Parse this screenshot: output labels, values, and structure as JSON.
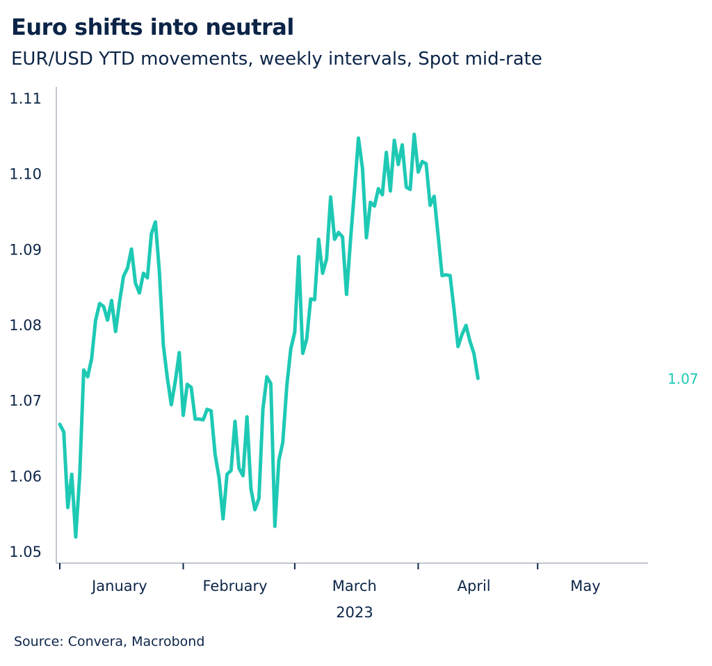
{
  "title": "Euro shifts into neutral",
  "subtitle": "EUR/USD YTD movements, weekly intervals, Spot mid-rate",
  "source": "Source: Convera, Macrobond",
  "colors": {
    "line": "#1ec9b4",
    "text": "#0b2447",
    "axis": "#9aa4b2"
  },
  "chart_data": {
    "type": "line",
    "title": "Euro shifts into neutral",
    "subtitle": "EUR/USD YTD movements, weekly intervals, Spot mid-rate",
    "xlabel": "2023",
    "ylabel": "",
    "ylim": [
      1.05,
      1.11
    ],
    "yticks": [
      1.05,
      1.06,
      1.07,
      1.08,
      1.09,
      1.1,
      1.11
    ],
    "ytick_labels": [
      "1.05",
      "1.06",
      "1.07",
      "1.08",
      "1.09",
      "1.10",
      "1.11"
    ],
    "xlim": [
      "2023-01-01",
      "2023-05-24"
    ],
    "xticks": [
      "2023-01-01",
      "2023-02-01",
      "2023-03-01",
      "2023-04-01",
      "2023-05-01"
    ],
    "month_labels": [
      {
        "label": "January",
        "mid": "2023-01-16"
      },
      {
        "label": "February",
        "mid": "2023-02-14"
      },
      {
        "label": "March",
        "mid": "2023-03-16"
      },
      {
        "label": "April",
        "mid": "2023-04-15"
      },
      {
        "label": "May",
        "mid": "2023-05-13"
      }
    ],
    "grid": false,
    "legend": "none",
    "end_label": "1.07",
    "series": [
      {
        "points": [
          [
            "2023-01-01",
            1.0668
          ],
          [
            "2023-01-02",
            1.0658
          ],
          [
            "2023-01-03",
            1.0558
          ],
          [
            "2023-01-04",
            1.0602
          ],
          [
            "2023-01-05",
            1.0519
          ],
          [
            "2023-01-06",
            1.06
          ],
          [
            "2023-01-07",
            1.074
          ],
          [
            "2023-01-08",
            1.0731
          ],
          [
            "2023-01-09",
            1.0755
          ],
          [
            "2023-01-10",
            1.0806
          ],
          [
            "2023-01-11",
            1.0828
          ],
          [
            "2023-01-12",
            1.0824
          ],
          [
            "2023-01-13",
            1.0806
          ],
          [
            "2023-01-14",
            1.0832
          ],
          [
            "2023-01-15",
            1.0791
          ],
          [
            "2023-01-16",
            1.083
          ],
          [
            "2023-01-17",
            1.0864
          ],
          [
            "2023-01-18",
            1.0875
          ],
          [
            "2023-01-19",
            1.09
          ],
          [
            "2023-01-20",
            1.0855
          ],
          [
            "2023-01-21",
            1.0842
          ],
          [
            "2023-01-22",
            1.0868
          ],
          [
            "2023-01-23",
            1.0862
          ],
          [
            "2023-01-24",
            1.092
          ],
          [
            "2023-01-25",
            1.0936
          ],
          [
            "2023-01-26",
            1.087
          ],
          [
            "2023-01-27",
            1.0773
          ],
          [
            "2023-01-28",
            1.073
          ],
          [
            "2023-01-29",
            1.0694
          ],
          [
            "2023-01-30",
            1.0725
          ],
          [
            "2023-01-31",
            1.0763
          ],
          [
            "2023-02-01",
            1.068
          ],
          [
            "2023-02-02",
            1.0721
          ],
          [
            "2023-02-03",
            1.0717
          ],
          [
            "2023-02-04",
            1.0675
          ],
          [
            "2023-02-05",
            1.0675
          ],
          [
            "2023-02-06",
            1.0674
          ],
          [
            "2023-02-07",
            1.0688
          ],
          [
            "2023-02-08",
            1.0686
          ],
          [
            "2023-02-09",
            1.0628
          ],
          [
            "2023-02-10",
            1.0597
          ],
          [
            "2023-02-11",
            1.0543
          ],
          [
            "2023-02-12",
            1.0602
          ],
          [
            "2023-02-13",
            1.0607
          ],
          [
            "2023-02-14",
            1.0672
          ],
          [
            "2023-02-15",
            1.061
          ],
          [
            "2023-02-16",
            1.06
          ],
          [
            "2023-02-17",
            1.0678
          ],
          [
            "2023-02-18",
            1.0583
          ],
          [
            "2023-02-19",
            1.0555
          ],
          [
            "2023-02-20",
            1.057
          ],
          [
            "2023-02-21",
            1.0688
          ],
          [
            "2023-02-22",
            1.0731
          ],
          [
            "2023-02-23",
            1.0722
          ],
          [
            "2023-02-24",
            1.0533
          ],
          [
            "2023-02-25",
            1.062
          ],
          [
            "2023-02-26",
            1.0644
          ],
          [
            "2023-02-27",
            1.0719
          ],
          [
            "2023-02-28",
            1.0768
          ],
          [
            "2023-03-01",
            1.079
          ],
          [
            "2023-03-02",
            1.089
          ],
          [
            "2023-03-03",
            1.0762
          ],
          [
            "2023-03-04",
            1.0781
          ],
          [
            "2023-03-05",
            1.0834
          ],
          [
            "2023-03-06",
            1.0833
          ],
          [
            "2023-03-07",
            1.0913
          ],
          [
            "2023-03-08",
            1.0868
          ],
          [
            "2023-03-09",
            1.0887
          ],
          [
            "2023-03-10",
            1.0969
          ],
          [
            "2023-03-11",
            1.0913
          ],
          [
            "2023-03-12",
            1.0922
          ],
          [
            "2023-03-13",
            1.0916
          ],
          [
            "2023-03-14",
            1.084
          ],
          [
            "2023-03-15",
            1.0912
          ],
          [
            "2023-03-16",
            1.0978
          ],
          [
            "2023-03-17",
            1.1047
          ],
          [
            "2023-03-18",
            1.1007
          ],
          [
            "2023-03-19",
            1.0915
          ],
          [
            "2023-03-20",
            1.0962
          ],
          [
            "2023-03-21",
            1.0957
          ],
          [
            "2023-03-22",
            1.098
          ],
          [
            "2023-03-23",
            1.0972
          ],
          [
            "2023-03-24",
            1.1028
          ],
          [
            "2023-03-25",
            1.0977
          ],
          [
            "2023-03-26",
            1.1044
          ],
          [
            "2023-03-27",
            1.1012
          ],
          [
            "2023-03-28",
            1.1038
          ],
          [
            "2023-03-29",
            1.0982
          ],
          [
            "2023-03-30",
            1.0979
          ],
          [
            "2023-03-31",
            1.1052
          ],
          [
            "2023-04-01",
            1.1002
          ],
          [
            "2023-04-02",
            1.1016
          ],
          [
            "2023-04-03",
            1.1013
          ],
          [
            "2023-04-04",
            1.0958
          ],
          [
            "2023-04-05",
            1.097
          ],
          [
            "2023-04-06",
            1.0918
          ],
          [
            "2023-04-07",
            1.0865
          ],
          [
            "2023-04-08",
            1.0866
          ],
          [
            "2023-04-09",
            1.0865
          ],
          [
            "2023-04-10",
            1.082
          ],
          [
            "2023-04-11",
            1.0771
          ],
          [
            "2023-04-12",
            1.0787
          ],
          [
            "2023-04-13",
            1.0799
          ],
          [
            "2023-04-14",
            1.0778
          ],
          [
            "2023-04-15",
            1.0762
          ],
          [
            "2023-04-16",
            1.0729
          ]
        ]
      }
    ]
  }
}
